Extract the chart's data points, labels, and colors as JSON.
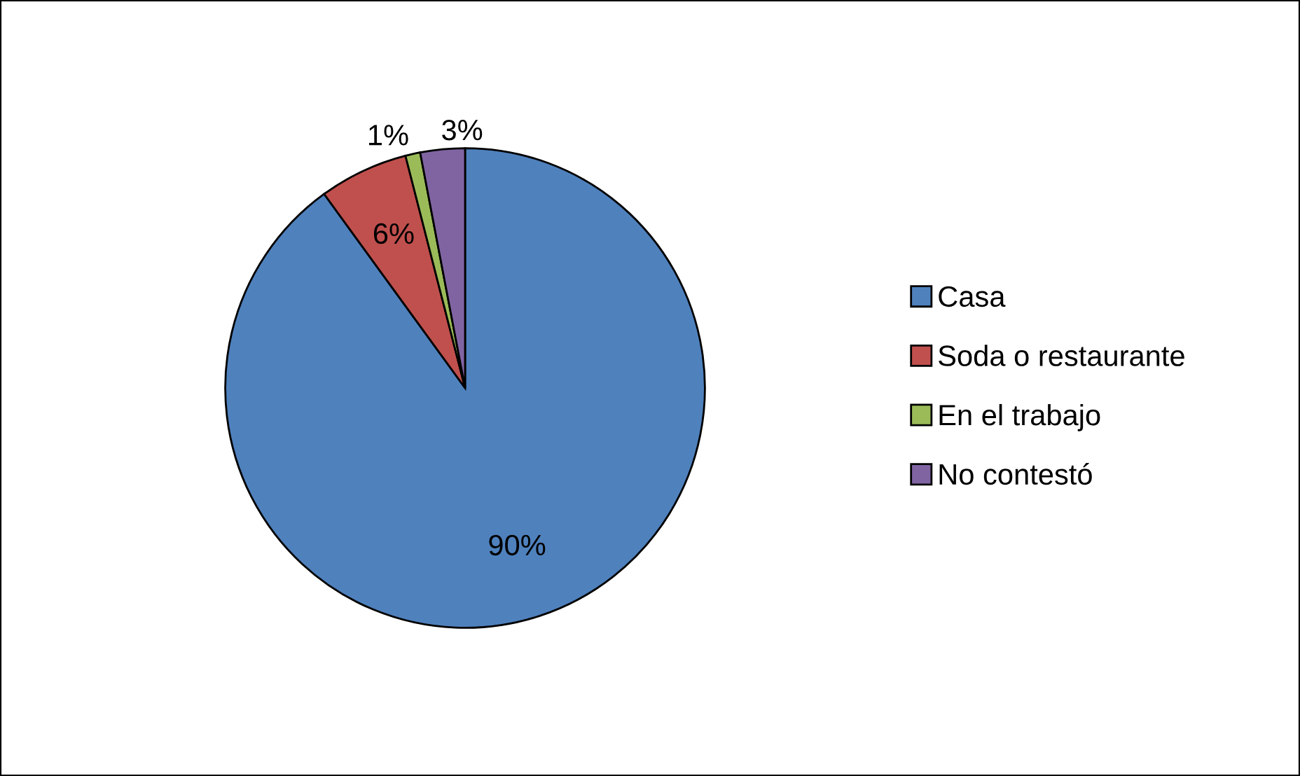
{
  "chart_data": {
    "type": "pie",
    "categories": [
      "Casa",
      "Soda o restaurante",
      "En el trabajo",
      "No contestó"
    ],
    "values": [
      90,
      6,
      1,
      3
    ],
    "colors": [
      "#4f81bd",
      "#c0504d",
      "#9bbb59",
      "#8064a2"
    ],
    "value_labels": [
      "90%",
      "6%",
      "1%",
      "3%"
    ],
    "legend": "right"
  }
}
